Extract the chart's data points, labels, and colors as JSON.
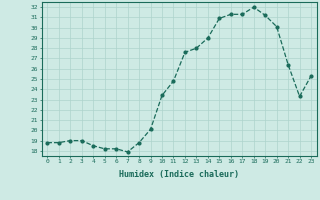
{
  "xlabel": "Humidex (Indice chaleur)",
  "ylabel": "",
  "x": [
    0,
    1,
    2,
    3,
    4,
    5,
    6,
    7,
    8,
    9,
    10,
    11,
    12,
    13,
    14,
    15,
    16,
    17,
    18,
    19,
    20,
    21,
    22,
    23
  ],
  "y": [
    18.8,
    18.8,
    19.0,
    19.0,
    18.5,
    18.2,
    18.2,
    17.9,
    18.8,
    20.1,
    23.4,
    24.8,
    27.6,
    28.0,
    29.0,
    30.9,
    31.3,
    31.3,
    32.0,
    31.2,
    30.1,
    26.4,
    23.3,
    25.3
  ],
  "line_color": "#1a6b5a",
  "marker": "o",
  "markersize": 2,
  "linewidth": 0.9,
  "ylim": [
    17.5,
    32.5
  ],
  "xlim": [
    -0.5,
    23.5
  ],
  "yticks": [
    18,
    19,
    20,
    21,
    22,
    23,
    24,
    25,
    26,
    27,
    28,
    29,
    30,
    31,
    32
  ],
  "xticks": [
    0,
    1,
    2,
    3,
    4,
    5,
    6,
    7,
    8,
    9,
    10,
    11,
    12,
    13,
    14,
    15,
    16,
    17,
    18,
    19,
    20,
    21,
    22,
    23
  ],
  "bg_color": "#ceeae4",
  "grid_color": "#aed4cc",
  "axis_color": "#1a6b5a",
  "tick_label_color": "#1a6b5a",
  "xlabel_color": "#1a6b5a",
  "linestyle": "--"
}
